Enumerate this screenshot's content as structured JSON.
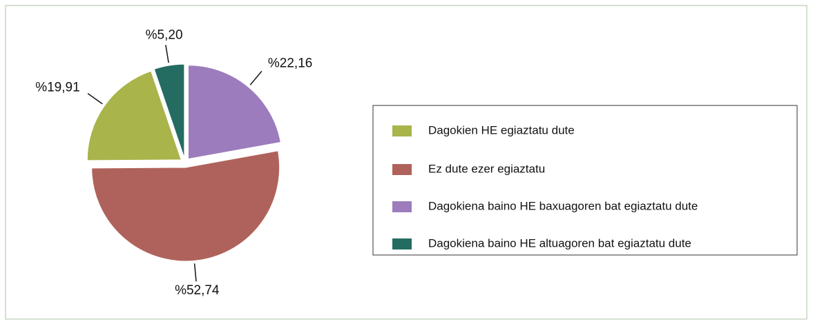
{
  "chart_data": {
    "type": "pie",
    "categories": [
      "Dagokien HE egiaztatu dute",
      "Ez dute ezer egiaztatu",
      "Dagokiena baino HE baxuagoren bat egiaztatu dute",
      "Dagokiena baino HE altuagoren bat egiaztatu dute"
    ],
    "values": [
      19.91,
      52.74,
      22.16,
      5.2
    ],
    "value_labels": [
      "%19,91",
      "%52,74",
      "%22,16",
      "%5,20"
    ],
    "colors": [
      "#a9b44b",
      "#af625b",
      "#9c7cbc",
      "#246c61"
    ],
    "legend": "right"
  }
}
